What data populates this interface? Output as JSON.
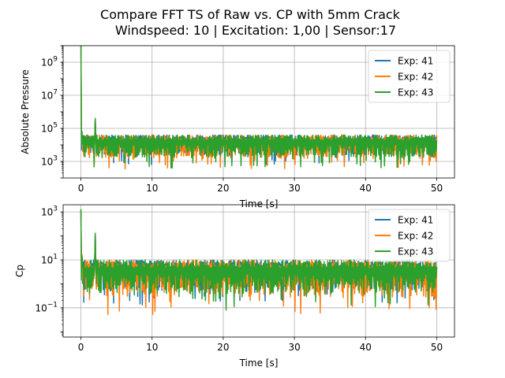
{
  "figure": {
    "title_line1": "Compare FFT TS of Raw vs. CP with 5mm Crack",
    "title_line2": "Windspeed: 10 | Excitation: 1,00 | Sensor:17"
  },
  "colors": {
    "exp41": "#1f77b4",
    "exp42": "#ff7f0e",
    "exp43": "#2ca02c",
    "grid": "#b0b0b0"
  },
  "chart_data": [
    {
      "type": "line",
      "xlabel": "Time [s]",
      "ylabel": "Absolute Pressure",
      "yscale": "log",
      "xlim": [
        -2.5,
        52.5
      ],
      "ylim": [
        100,
        10000000000
      ],
      "x_ticks": [
        0,
        10,
        20,
        30,
        40,
        50
      ],
      "y_ticks": [
        1000,
        100000,
        10000000,
        1000000000
      ],
      "y_tick_labels": [
        [
          "10",
          "3"
        ],
        [
          "10",
          "5"
        ],
        [
          "10",
          "7"
        ],
        [
          "10",
          "9"
        ]
      ],
      "grid": true,
      "legend_position": "top-right",
      "series": [
        {
          "name": "Exp: 41",
          "color": "#1f77b4",
          "peak_at_0": 30000000000,
          "secondary_peak_t": 2.0,
          "secondary_peak": 350000,
          "baseline_log_range": [
            2.8,
            4.6
          ]
        },
        {
          "name": "Exp: 42",
          "color": "#ff7f0e",
          "peak_at_0": 25000000000,
          "secondary_peak_t": 2.0,
          "secondary_peak": 300000,
          "baseline_log_range": [
            2.5,
            4.6
          ]
        },
        {
          "name": "Exp: 43",
          "color": "#2ca02c",
          "peak_at_0": 30000000000,
          "secondary_peak_t": 2.0,
          "secondary_peak": 400000,
          "baseline_log_range": [
            2.6,
            4.6
          ]
        }
      ]
    },
    {
      "type": "line",
      "xlabel": "Time [s]",
      "ylabel": "Cp",
      "yscale": "log",
      "xlim": [
        -2.5,
        52.5
      ],
      "ylim": [
        0.006,
        2000
      ],
      "x_ticks": [
        0,
        10,
        20,
        30,
        40,
        50
      ],
      "y_ticks": [
        0.1,
        10,
        1000
      ],
      "y_tick_labels": [
        [
          "10",
          "−1"
        ],
        [
          "10",
          "1"
        ],
        [
          "10",
          "3"
        ]
      ],
      "grid": true,
      "legend_position": "top-right",
      "series": [
        {
          "name": "Exp: 41",
          "color": "#1f77b4",
          "peak_at_0": 1200,
          "secondary_peak_t": 2.0,
          "secondary_peak": 120,
          "baseline_log_range": [
            -0.9,
            1.0
          ]
        },
        {
          "name": "Exp: 42",
          "color": "#ff7f0e",
          "peak_at_0": 1000,
          "secondary_peak_t": 2.0,
          "secondary_peak": 110,
          "baseline_log_range": [
            -1.3,
            1.0
          ]
        },
        {
          "name": "Exp: 43",
          "color": "#2ca02c",
          "peak_at_0": 1300,
          "secondary_peak_t": 2.0,
          "secondary_peak": 130,
          "baseline_log_range": [
            -1.1,
            1.0
          ]
        }
      ]
    }
  ]
}
